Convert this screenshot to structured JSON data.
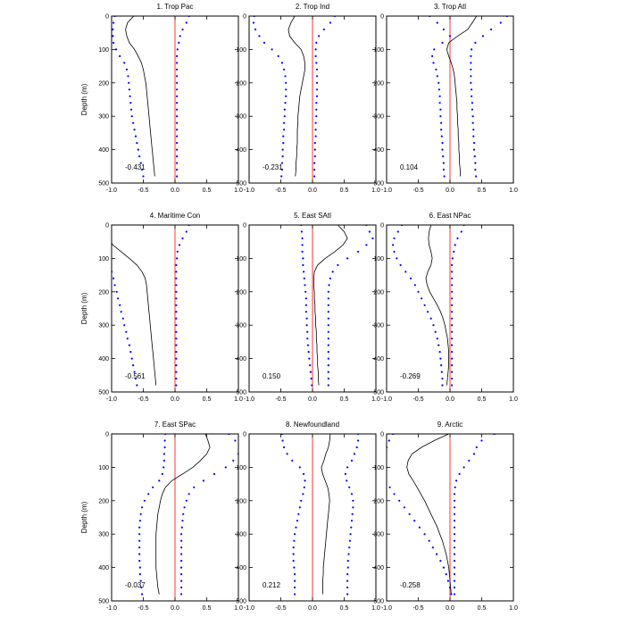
{
  "chart_data": {
    "type": "line",
    "ylabel": "Depth (m)",
    "xlim": [
      -1.0,
      1.0
    ],
    "ylim": [
      0,
      500
    ],
    "y_inverted": true,
    "xticks": [
      "-1.0",
      "-0.5",
      "0.0",
      "0.5",
      "1.0"
    ],
    "yticks": [
      "0",
      "100",
      "200",
      "300",
      "400",
      "500"
    ],
    "depths": [
      0,
      20,
      40,
      60,
      80,
      100,
      120,
      140,
      160,
      180,
      200,
      220,
      240,
      260,
      280,
      300,
      320,
      340,
      360,
      380,
      400,
      420,
      440,
      460,
      480
    ],
    "colors": {
      "correlation": "#000000",
      "lower_bound": "#0000ff",
      "upper_bound": "#0000ff",
      "zero_line": "#ff0000"
    },
    "panels": [
      {
        "title": "1. Trop Pac",
        "value_label": "-0.431",
        "series": [
          {
            "values": [
              -0.65,
              -0.75,
              -0.78,
              -0.76,
              -0.72,
              -0.64,
              -0.58,
              -0.53,
              -0.5,
              -0.48,
              -0.46,
              -0.45,
              -0.44,
              -0.43,
              -0.42,
              -0.41,
              -0.4,
              -0.39,
              -0.38,
              -0.37,
              -0.36,
              -0.35,
              -0.34,
              -0.33,
              -0.32
            ]
          },
          {
            "values": [
              -0.95,
              -0.97,
              -0.98,
              -0.98,
              -0.97,
              -0.93,
              -0.87,
              -0.8,
              -0.76,
              -0.74,
              -0.73,
              -0.72,
              -0.71,
              -0.7,
              -0.69,
              -0.68,
              -0.66,
              -0.64,
              -0.62,
              -0.6,
              -0.58,
              -0.56,
              -0.54,
              -0.52,
              -0.5
            ]
          },
          {
            "values": [
              0.22,
              0.18,
              0.12,
              0.08,
              0.06,
              0.04,
              0.03,
              0.03,
              0.03,
              0.03,
              0.03,
              0.03,
              0.03,
              0.03,
              0.03,
              0.03,
              0.03,
              0.03,
              0.03,
              0.03,
              0.03,
              0.03,
              0.03,
              0.03,
              0.03
            ]
          }
        ]
      },
      {
        "title": "2. Trop Ind",
        "value_label": "-0.231",
        "series": [
          {
            "values": [
              -0.28,
              -0.34,
              -0.38,
              -0.36,
              -0.28,
              -0.18,
              -0.14,
              -0.12,
              -0.12,
              -0.14,
              -0.16,
              -0.18,
              -0.2,
              -0.21,
              -0.22,
              -0.23,
              -0.23,
              -0.24,
              -0.24,
              -0.24,
              -0.25,
              -0.25,
              -0.26,
              -0.26,
              -0.27
            ]
          },
          {
            "values": [
              -0.92,
              -0.93,
              -0.9,
              -0.84,
              -0.76,
              -0.64,
              -0.54,
              -0.48,
              -0.45,
              -0.43,
              -0.42,
              -0.42,
              -0.42,
              -0.43,
              -0.44,
              -0.44,
              -0.45,
              -0.45,
              -0.46,
              -0.46,
              -0.47,
              -0.47,
              -0.48,
              -0.48,
              -0.49
            ]
          },
          {
            "values": [
              0.35,
              0.28,
              0.18,
              0.1,
              0.06,
              0.05,
              0.05,
              0.06,
              0.07,
              0.07,
              0.07,
              0.07,
              0.07,
              0.06,
              0.06,
              0.06,
              0.05,
              0.05,
              0.05,
              0.04,
              0.04,
              0.04,
              0.03,
              0.03,
              0.03
            ]
          }
        ]
      },
      {
        "title": "3. Trop Atl",
        "value_label": "0.104",
        "series": [
          {
            "values": [
              0.42,
              0.35,
              0.28,
              0.12,
              -0.02,
              -0.05,
              -0.02,
              0.02,
              0.05,
              0.07,
              0.08,
              0.09,
              0.1,
              0.11,
              0.11,
              0.12,
              0.12,
              0.13,
              0.13,
              0.14,
              0.14,
              0.15,
              0.15,
              0.16,
              0.16
            ]
          },
          {
            "values": [
              -0.32,
              -0.2,
              -0.1,
              0.0,
              -0.12,
              -0.25,
              -0.28,
              -0.26,
              -0.22,
              -0.2,
              -0.18,
              -0.17,
              -0.16,
              -0.16,
              -0.15,
              -0.15,
              -0.14,
              -0.14,
              -0.13,
              -0.12,
              -0.12,
              -0.11,
              -0.1,
              -0.1,
              -0.09
            ]
          },
          {
            "values": [
              0.9,
              0.8,
              0.65,
              0.52,
              0.4,
              0.34,
              0.33,
              0.33,
              0.33,
              0.33,
              0.33,
              0.34,
              0.34,
              0.35,
              0.35,
              0.36,
              0.36,
              0.37,
              0.37,
              0.38,
              0.38,
              0.39,
              0.4,
              0.4,
              0.41
            ]
          }
        ]
      },
      {
        "title": "4. Maritime Con",
        "value_label": "-0.561",
        "series": [
          {
            "values": [
              -1.25,
              -1.15,
              -1.05,
              -0.98,
              -0.85,
              -0.72,
              -0.6,
              -0.52,
              -0.47,
              -0.45,
              -0.44,
              -0.43,
              -0.42,
              -0.41,
              -0.4,
              -0.39,
              -0.38,
              -0.37,
              -0.36,
              -0.35,
              -0.34,
              -0.33,
              -0.32,
              -0.31,
              -0.3
            ]
          },
          {
            "values": [
              -1.5,
              -1.5,
              -1.4,
              -1.3,
              -1.2,
              -1.1,
              -1.05,
              -1.0,
              -0.97,
              -0.95,
              -0.92,
              -0.9,
              -0.87,
              -0.85,
              -0.82,
              -0.8,
              -0.77,
              -0.75,
              -0.72,
              -0.7,
              -0.68,
              -0.66,
              -0.64,
              -0.62,
              -0.6
            ]
          },
          {
            "values": [
              0.22,
              0.18,
              0.12,
              0.07,
              0.04,
              0.03,
              0.02,
              0.02,
              0.02,
              0.02,
              0.02,
              0.02,
              0.02,
              0.02,
              0.02,
              0.02,
              0.02,
              0.02,
              0.02,
              0.02,
              0.02,
              0.02,
              0.02,
              0.02,
              0.02
            ]
          }
        ]
      },
      {
        "title": "5. East SAtl",
        "value_label": "0.150",
        "series": [
          {
            "values": [
              0.4,
              0.5,
              0.55,
              0.48,
              0.35,
              0.2,
              0.08,
              0.03,
              0.02,
              0.02,
              0.03,
              0.03,
              0.04,
              0.04,
              0.05,
              0.05,
              0.06,
              0.06,
              0.07,
              0.07,
              0.08,
              0.08,
              0.09,
              0.09,
              0.1
            ]
          },
          {
            "values": [
              -0.18,
              -0.17,
              -0.16,
              -0.16,
              -0.16,
              -0.15,
              -0.15,
              -0.14,
              -0.13,
              -0.12,
              -0.11,
              -0.1,
              -0.1,
              -0.1,
              -0.09,
              -0.09,
              -0.08,
              -0.08,
              -0.07,
              -0.06,
              -0.05,
              -0.04,
              -0.03,
              -0.02,
              -0.01
            ]
          },
          {
            "values": [
              0.85,
              0.9,
              0.95,
              0.85,
              0.72,
              0.55,
              0.4,
              0.32,
              0.28,
              0.26,
              0.25,
              0.25,
              0.25,
              0.25,
              0.25,
              0.25,
              0.25,
              0.25,
              0.25,
              0.25,
              0.25,
              0.25,
              0.25,
              0.25,
              0.25
            ]
          }
        ]
      },
      {
        "title": "6. East NPac",
        "value_label": "-0.269",
        "series": [
          {
            "values": [
              -0.3,
              -0.33,
              -0.34,
              -0.33,
              -0.3,
              -0.28,
              -0.3,
              -0.35,
              -0.38,
              -0.36,
              -0.32,
              -0.26,
              -0.2,
              -0.15,
              -0.11,
              -0.08,
              -0.06,
              -0.04,
              -0.03,
              -0.02,
              -0.02,
              -0.02,
              -0.03,
              -0.04,
              -0.05
            ]
          },
          {
            "values": [
              -0.76,
              -0.82,
              -0.88,
              -0.9,
              -0.88,
              -0.84,
              -0.78,
              -0.7,
              -0.62,
              -0.55,
              -0.5,
              -0.45,
              -0.4,
              -0.35,
              -0.3,
              -0.26,
              -0.23,
              -0.2,
              -0.18,
              -0.16,
              -0.15,
              -0.14,
              -0.13,
              -0.12,
              -0.12
            ]
          },
          {
            "values": [
              0.22,
              0.18,
              0.12,
              0.08,
              0.06,
              0.04,
              0.03,
              0.03,
              0.03,
              0.03,
              0.03,
              0.03,
              0.03,
              0.03,
              0.03,
              0.03,
              0.03,
              0.03,
              0.03,
              0.03,
              0.03,
              0.03,
              0.03,
              0.03,
              0.03
            ]
          }
        ]
      },
      {
        "title": "7. East SPac",
        "value_label": "-0.037",
        "series": [
          {
            "values": [
              0.48,
              0.52,
              0.55,
              0.5,
              0.4,
              0.28,
              0.12,
              -0.05,
              -0.15,
              -0.2,
              -0.23,
              -0.25,
              -0.27,
              -0.28,
              -0.29,
              -0.3,
              -0.3,
              -0.3,
              -0.3,
              -0.3,
              -0.3,
              -0.29,
              -0.28,
              -0.27,
              -0.25
            ]
          },
          {
            "values": [
              -0.15,
              -0.16,
              -0.16,
              -0.17,
              -0.17,
              -0.18,
              -0.2,
              -0.25,
              -0.35,
              -0.42,
              -0.48,
              -0.52,
              -0.54,
              -0.55,
              -0.56,
              -0.56,
              -0.56,
              -0.56,
              -0.56,
              -0.56,
              -0.55,
              -0.55,
              -0.54,
              -0.53,
              -0.52
            ]
          },
          {
            "values": [
              0.85,
              0.95,
              1.05,
              1.0,
              0.92,
              0.8,
              0.62,
              0.45,
              0.3,
              0.22,
              0.18,
              0.15,
              0.13,
              0.12,
              0.11,
              0.1,
              0.1,
              0.1,
              0.1,
              0.1,
              0.1,
              0.1,
              0.1,
              0.1,
              0.1
            ]
          }
        ]
      },
      {
        "title": "8. Newfoundland",
        "value_label": "0.212",
        "series": [
          {
            "values": [
              0.28,
              0.27,
              0.25,
              0.21,
              0.18,
              0.14,
              0.16,
              0.2,
              0.24,
              0.26,
              0.27,
              0.26,
              0.25,
              0.24,
              0.23,
              0.22,
              0.21,
              0.2,
              0.19,
              0.18,
              0.17,
              0.17,
              0.16,
              0.16,
              0.16
            ]
          },
          {
            "values": [
              -0.48,
              -0.47,
              -0.45,
              -0.4,
              -0.32,
              -0.2,
              -0.14,
              -0.12,
              -0.13,
              -0.15,
              -0.18,
              -0.2,
              -0.22,
              -0.24,
              -0.26,
              -0.28,
              -0.29,
              -0.3,
              -0.3,
              -0.3,
              -0.29,
              -0.28,
              -0.28,
              -0.28,
              -0.28
            ]
          },
          {
            "values": [
              0.72,
              0.72,
              0.7,
              0.66,
              0.62,
              0.55,
              0.52,
              0.54,
              0.58,
              0.62,
              0.64,
              0.64,
              0.63,
              0.62,
              0.61,
              0.6,
              0.59,
              0.58,
              0.57,
              0.56,
              0.56,
              0.55,
              0.55,
              0.55,
              0.55
            ]
          }
        ]
      },
      {
        "title": "9. Arctic",
        "value_label": "-0.258",
        "series": [
          {
            "values": [
              -0.02,
              -0.25,
              -0.45,
              -0.6,
              -0.66,
              -0.68,
              -0.65,
              -0.58,
              -0.52,
              -0.46,
              -0.4,
              -0.35,
              -0.3,
              -0.25,
              -0.2,
              -0.16,
              -0.12,
              -0.09,
              -0.06,
              -0.04,
              -0.02,
              -0.01,
              0.0,
              0.01,
              0.02
            ]
          },
          {
            "values": [
              -0.9,
              -0.96,
              -1.0,
              -1.05,
              -1.1,
              -1.14,
              -1.1,
              -1.02,
              -0.95,
              -0.88,
              -0.8,
              -0.72,
              -0.64,
              -0.56,
              -0.48,
              -0.4,
              -0.33,
              -0.27,
              -0.21,
              -0.15,
              -0.1,
              -0.06,
              -0.03,
              0.0,
              0.02
            ]
          },
          {
            "values": [
              0.7,
              0.5,
              0.42,
              0.38,
              0.3,
              0.22,
              0.15,
              0.1,
              0.08,
              0.07,
              0.07,
              0.07,
              0.07,
              0.07,
              0.07,
              0.07,
              0.07,
              0.07,
              0.07,
              0.07,
              0.07,
              0.07,
              0.07,
              0.07,
              0.07
            ]
          }
        ]
      }
    ]
  }
}
